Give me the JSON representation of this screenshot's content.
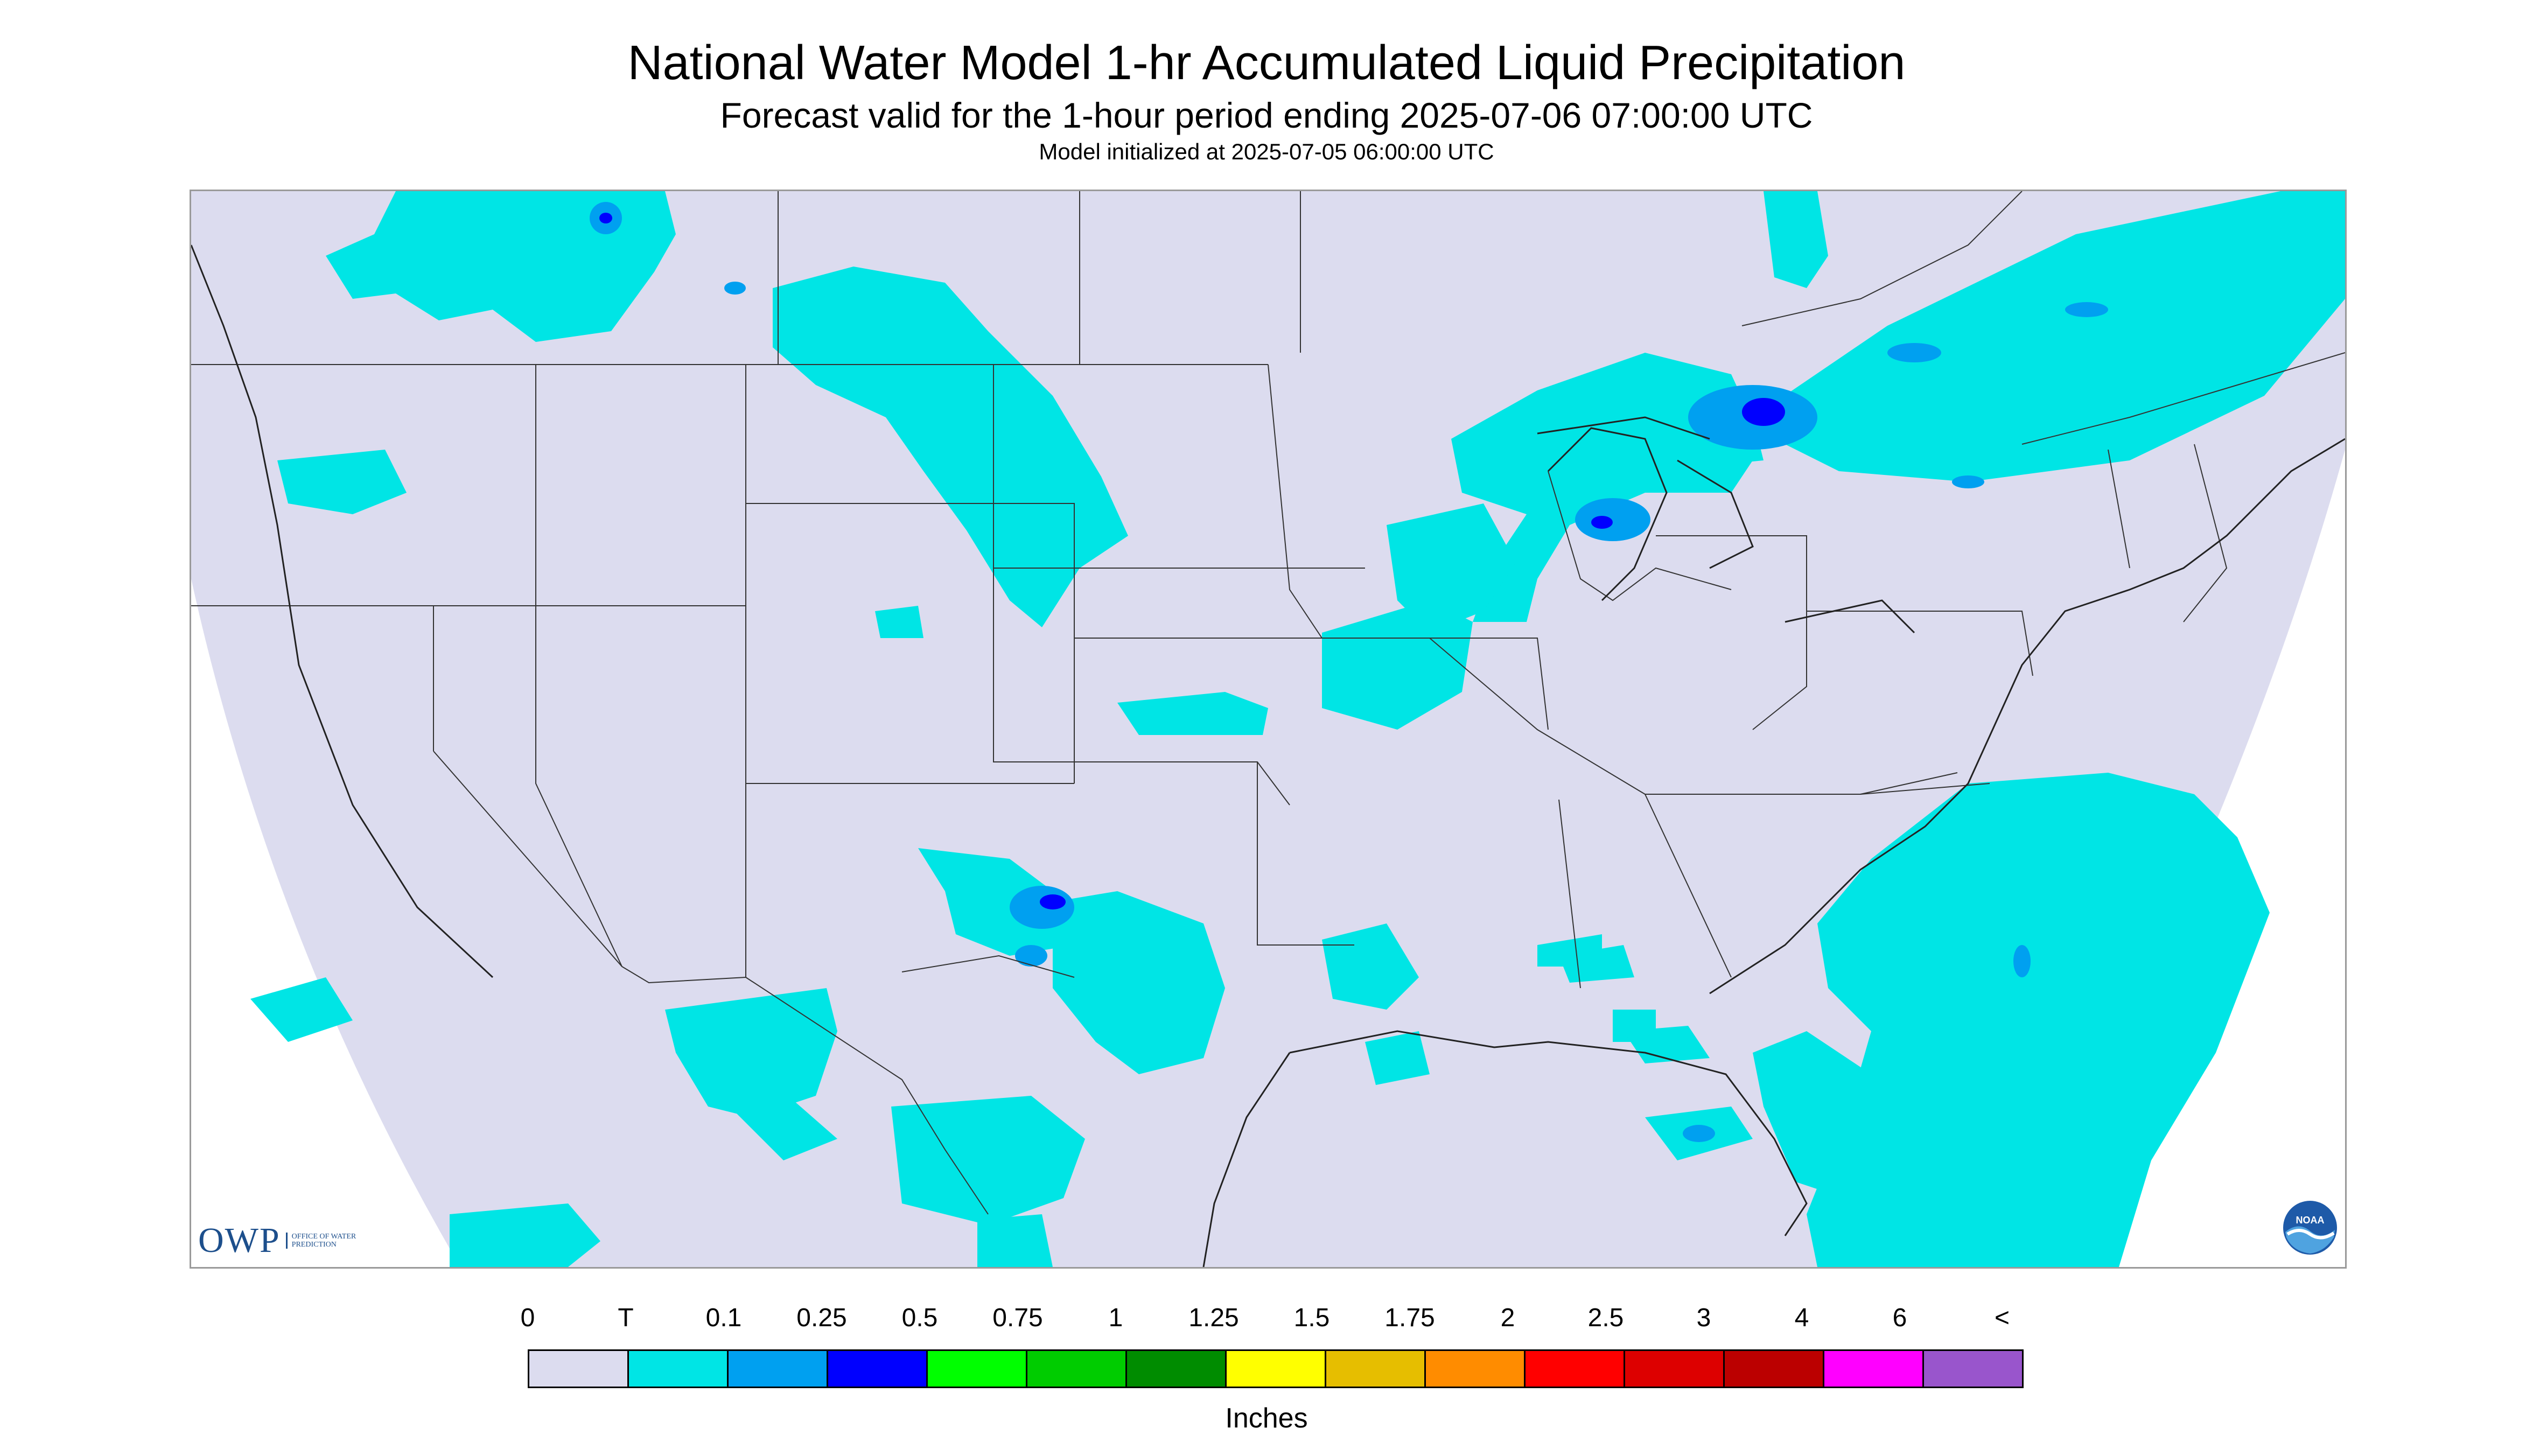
{
  "header": {
    "title": "National Water Model 1-hr Accumulated Liquid Precipitation",
    "subtitle": "Forecast valid for the 1-hour period ending 2025-07-06 07:00:00 UTC",
    "init_line": "Model initialized at 2025-07-05 06:00:00 UTC"
  },
  "logos": {
    "owp_mark": "OWP",
    "owp_text": "OFFICE OF WATER PREDICTION",
    "noaa_text": "NOAA"
  },
  "colors": {
    "no_data_bg": "#ffffff",
    "land_bg": "#dcdcef",
    "boundary": "#333333",
    "trace": "#00e5e5",
    "p01": "#00a0f0",
    "p025": "#0000ff"
  },
  "legend": {
    "labels": [
      "0",
      "T",
      "0.1",
      "0.25",
      "0.5",
      "0.75",
      "1",
      "1.25",
      "1.5",
      "1.75",
      "2",
      "2.5",
      "3",
      "4",
      "6",
      "<"
    ],
    "colors": [
      "#dcdcef",
      "#00e5e5",
      "#00a0f0",
      "#0000ff",
      "#00ff00",
      "#00cc00",
      "#008c00",
      "#ffff00",
      "#e6be00",
      "#ff8c00",
      "#ff0000",
      "#dd0000",
      "#bb0000",
      "#ff00ff",
      "#9955cc"
    ],
    "unit": "Inches"
  }
}
